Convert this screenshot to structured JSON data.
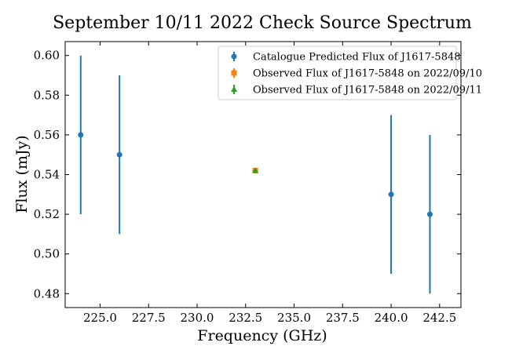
{
  "chart_data": {
    "type": "scatter",
    "title": "September 10/11 2022 Check Source Spectrum",
    "xlabel": "Frequency (GHz)",
    "ylabel": "Flux (mJy)",
    "xlim": [
      223.2,
      243.6
    ],
    "ylim": [
      0.473,
      0.607
    ],
    "xticks": [
      225.0,
      227.5,
      230.0,
      232.5,
      235.0,
      237.5,
      240.0,
      242.5
    ],
    "xtick_labels": [
      "225.0",
      "227.5",
      "230.0",
      "232.5",
      "235.0",
      "237.5",
      "240.0",
      "242.5"
    ],
    "yticks": [
      0.48,
      0.5,
      0.52,
      0.54,
      0.56,
      0.58,
      0.6
    ],
    "ytick_labels": [
      "0.48",
      "0.50",
      "0.52",
      "0.54",
      "0.56",
      "0.58",
      "0.60"
    ],
    "grid": false,
    "legend_position": "top-right",
    "series": [
      {
        "name": "Catalogue Predicted Flux of J1617-5848",
        "color": "#1f77b4",
        "marker": "circle",
        "x": [
          224,
          226,
          240,
          242
        ],
        "y": [
          0.56,
          0.55,
          0.53,
          0.52
        ],
        "yerr": [
          0.04,
          0.04,
          0.04,
          0.04
        ]
      },
      {
        "name": "Observed Flux of J1617-5848 on 2022/09/10",
        "color": "#ff7f0e",
        "marker": "square",
        "x": [
          233
        ],
        "y": [
          0.542
        ],
        "yerr": [
          0.0008
        ]
      },
      {
        "name": "Observed Flux of J1617-5848 on 2022/09/11",
        "color": "#2ca02c",
        "marker": "triangle",
        "x": [
          233
        ],
        "y": [
          0.542
        ],
        "yerr": [
          0.0008
        ]
      }
    ]
  }
}
